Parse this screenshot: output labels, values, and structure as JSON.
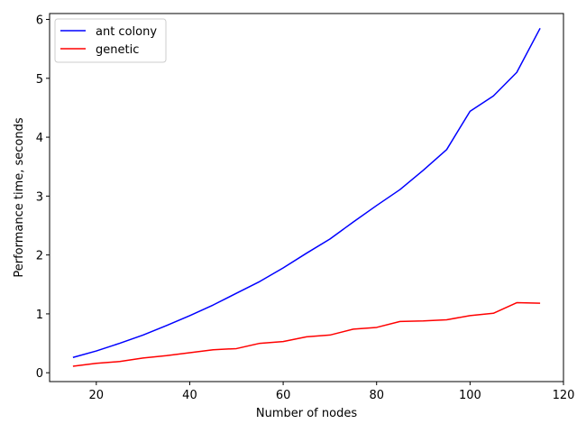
{
  "chart_data": {
    "type": "line",
    "title": "",
    "xlabel": "Number of nodes",
    "ylabel": "Performance time, seconds",
    "xlim": [
      10,
      120
    ],
    "ylim": [
      -0.15,
      6.1
    ],
    "x_ticks": [
      20,
      40,
      60,
      80,
      100,
      120
    ],
    "y_ticks": [
      0,
      1,
      2,
      3,
      4,
      5,
      6
    ],
    "grid": false,
    "legend_position": "top-left",
    "x": [
      15,
      20,
      25,
      30,
      35,
      40,
      45,
      50,
      55,
      60,
      65,
      70,
      75,
      80,
      85,
      90,
      95,
      100,
      105,
      110,
      115
    ],
    "series": [
      {
        "name": "ant colony",
        "color": "#0000ff",
        "values": [
          0.26,
          0.37,
          0.5,
          0.64,
          0.8,
          0.97,
          1.15,
          1.35,
          1.55,
          1.78,
          2.03,
          2.27,
          2.56,
          2.84,
          3.11,
          3.44,
          3.79,
          4.44,
          4.7,
          5.1,
          5.85
        ]
      },
      {
        "name": "genetic",
        "color": "#ff0000",
        "values": [
          0.11,
          0.16,
          0.19,
          0.25,
          0.29,
          0.34,
          0.39,
          0.41,
          0.5,
          0.53,
          0.61,
          0.64,
          0.74,
          0.77,
          0.87,
          0.88,
          0.9,
          0.97,
          1.01,
          1.19,
          1.18
        ]
      }
    ]
  }
}
